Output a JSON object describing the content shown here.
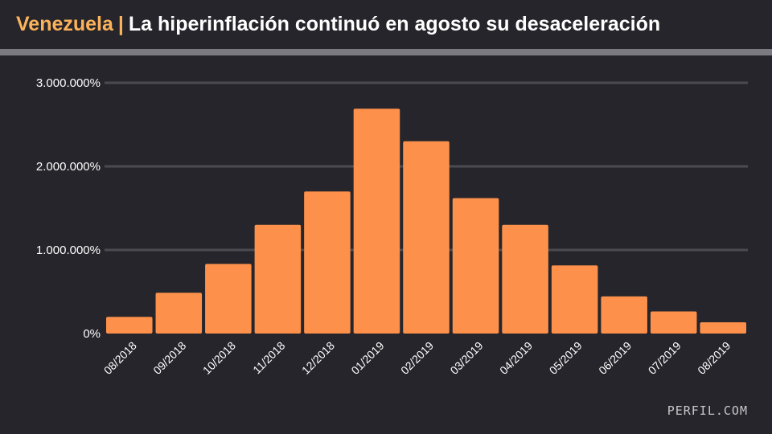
{
  "header": {
    "highlight": "Venezuela",
    "separator": "|",
    "title": "La hiperinflación continuó en agosto su desaceleración"
  },
  "brand": "PERFIL.COM",
  "colors": {
    "background": "#25252b",
    "bar": "#fd914b",
    "highlight": "#fbb25a",
    "grid": "#4a4a52",
    "text": "#ffffff",
    "rule": "#7a7a80"
  },
  "chart_data": {
    "type": "bar",
    "title": "",
    "xlabel": "",
    "ylabel": "",
    "categories": [
      "08/2018",
      "09/2018",
      "10/2018",
      "11/2018",
      "12/2018",
      "01/2019",
      "02/2019",
      "03/2019",
      "04/2019",
      "05/2019",
      "06/2019",
      "07/2019",
      "08/2019"
    ],
    "values": [
      200000,
      488000,
      833000,
      1300000,
      1700000,
      2690000,
      2300000,
      1620000,
      1300000,
      815000,
      445000,
      265000,
      135000
    ],
    "ylim": [
      0,
      3000000
    ],
    "yticks": [
      0,
      1000000,
      2000000,
      3000000
    ],
    "ytick_labels": [
      "0%",
      "1.000.000%",
      "2.000.000%",
      "3.000.000%"
    ],
    "grid": true,
    "legend": "none"
  }
}
